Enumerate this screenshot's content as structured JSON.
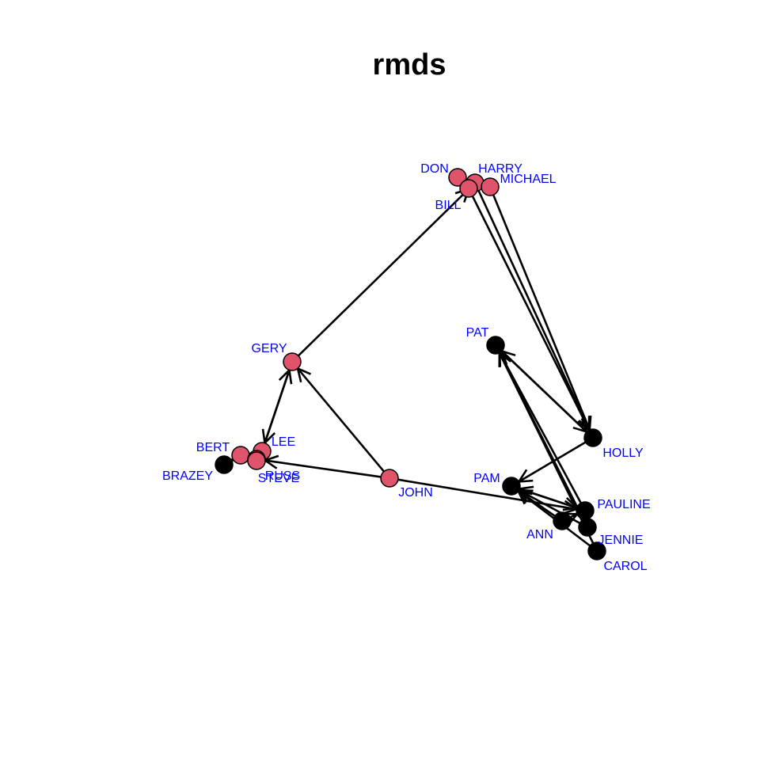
{
  "title": "rmds",
  "colors": {
    "group_red": "#DF536B",
    "group_black": "#000000",
    "label": "#0000FF",
    "edge": "#000000"
  },
  "nodes": [
    {
      "id": "DON",
      "label": "DON",
      "group": "red"
    },
    {
      "id": "HARRY",
      "label": "HARRY",
      "group": "red"
    },
    {
      "id": "BILL",
      "label": "BILL",
      "group": "red"
    },
    {
      "id": "MICHAEL",
      "label": "MICHAEL",
      "group": "red"
    },
    {
      "id": "GERY",
      "label": "GERY",
      "group": "red"
    },
    {
      "id": "JOHN",
      "label": "JOHN",
      "group": "red"
    },
    {
      "id": "LEE",
      "label": "LEE",
      "group": "red"
    },
    {
      "id": "BERT",
      "label": "BERT",
      "group": "red"
    },
    {
      "id": "RUSS",
      "label": "RUSS",
      "group": "red"
    },
    {
      "id": "STEVE",
      "label": "STEVE",
      "group": "red"
    },
    {
      "id": "BRAZEY",
      "label": "BRAZEY",
      "group": "black"
    },
    {
      "id": "PAT",
      "label": "PAT",
      "group": "black"
    },
    {
      "id": "HOLLY",
      "label": "HOLLY",
      "group": "black"
    },
    {
      "id": "PAM",
      "label": "PAM",
      "group": "black"
    },
    {
      "id": "PAULINE",
      "label": "PAULINE",
      "group": "black"
    },
    {
      "id": "ANN",
      "label": "ANN",
      "group": "black"
    },
    {
      "id": "JENNIE",
      "label": "JENNIE",
      "group": "black"
    },
    {
      "id": "CAROL",
      "label": "CAROL",
      "group": "black"
    }
  ],
  "edges": [
    {
      "from": "GERY",
      "to": "HARRY"
    },
    {
      "from": "JOHN",
      "to": "GERY"
    },
    {
      "from": "JOHN",
      "to": "RUSS"
    },
    {
      "from": "JOHN",
      "to": "PAULINE"
    },
    {
      "from": "GERY",
      "to": "LEE"
    },
    {
      "from": "LEE",
      "to": "GERY"
    },
    {
      "from": "BRAZEY",
      "to": "BERT"
    },
    {
      "from": "BERT",
      "to": "STEVE"
    },
    {
      "from": "STEVE",
      "to": "BERT"
    },
    {
      "from": "DON",
      "to": "BILL"
    },
    {
      "from": "BILL",
      "to": "HOLLY"
    },
    {
      "from": "HARRY",
      "to": "HOLLY"
    },
    {
      "from": "MICHAEL",
      "to": "HOLLY"
    },
    {
      "from": "PAT",
      "to": "HOLLY"
    },
    {
      "from": "HOLLY",
      "to": "PAT"
    },
    {
      "from": "HOLLY",
      "to": "PAM"
    },
    {
      "from": "JENNIE",
      "to": "PAT"
    },
    {
      "from": "CAROL",
      "to": "PAT"
    },
    {
      "from": "PAULINE",
      "to": "PAT"
    },
    {
      "from": "ANN",
      "to": "PAM"
    },
    {
      "from": "JENNIE",
      "to": "PAM"
    },
    {
      "from": "PAULINE",
      "to": "PAM"
    },
    {
      "from": "PAM",
      "to": "PAULINE"
    },
    {
      "from": "ANN",
      "to": "PAULINE"
    },
    {
      "from": "CAROL",
      "to": "PAM"
    }
  ]
}
